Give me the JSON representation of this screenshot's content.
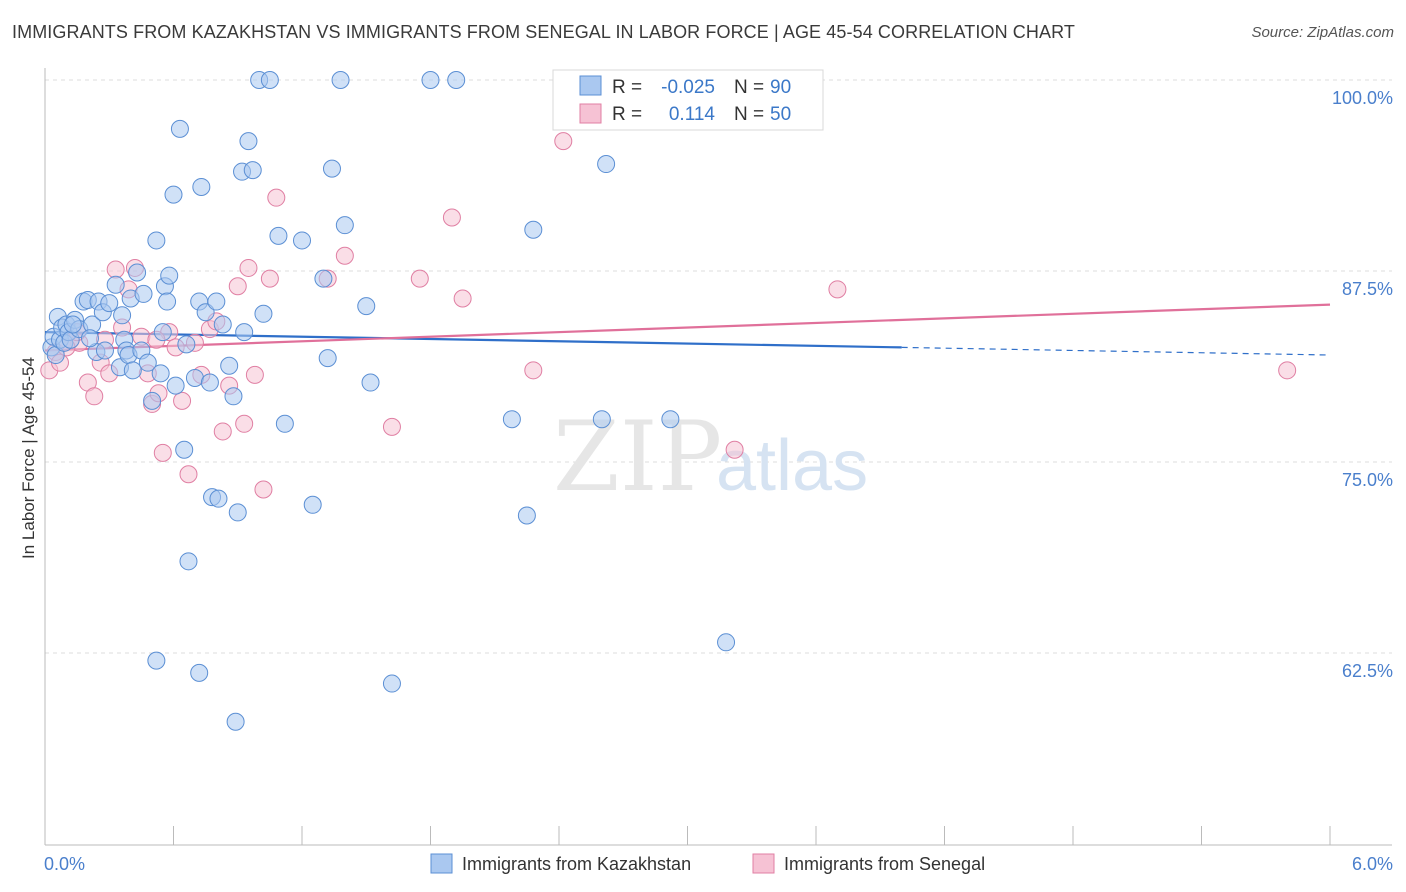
{
  "title": "IMMIGRANTS FROM KAZAKHSTAN VS IMMIGRANTS FROM SENEGAL IN LABOR FORCE | AGE 45-54 CORRELATION CHART",
  "source": "Source: ZipAtlas.com",
  "watermark": {
    "zip": "ZIP",
    "atlas": "atlas"
  },
  "colors": {
    "kazakhstan_fill": "#aac8f0",
    "kazakhstan_stroke": "#5b8fd4",
    "kazakhstan_line": "#2f6fc9",
    "senegal_fill": "#f6c2d4",
    "senegal_stroke": "#e07fa3",
    "senegal_line": "#e0709a",
    "axis_label": "#4a7fcc",
    "grid": "#dddddd"
  },
  "legend_top": {
    "rows": [
      {
        "r_label": "R =",
        "r_value": "-0.025",
        "n_label": "N =",
        "n_value": "90"
      },
      {
        "r_label": "R =",
        "r_value": "0.114",
        "n_label": "N =",
        "n_value": "50"
      }
    ]
  },
  "legend_bottom": {
    "items": [
      {
        "label": "Immigrants from Kazakhstan"
      },
      {
        "label": "Immigrants from Senegal"
      }
    ]
  },
  "chart_data": {
    "type": "scatter",
    "title": "IMMIGRANTS FROM KAZAKHSTAN VS IMMIGRANTS FROM SENEGAL IN LABOR FORCE | AGE 45-54 CORRELATION CHART",
    "xlabel": "",
    "ylabel": "In Labor Force | Age 45-54",
    "xlim": [
      0,
      6
    ],
    "ylim": [
      50,
      101.5
    ],
    "x_tick_labels": [
      {
        "value": 0,
        "label": "0.0%"
      },
      {
        "value": 6,
        "label": "6.0%"
      }
    ],
    "y_tick_labels": [
      {
        "value": 100,
        "label": "100.0%"
      },
      {
        "value": 87.5,
        "label": "87.5%"
      },
      {
        "value": 75,
        "label": "75.0%"
      },
      {
        "value": 62.5,
        "label": "62.5%"
      }
    ],
    "series": [
      {
        "name": "Immigrants from Kazakhstan",
        "r": -0.025,
        "n": 90,
        "trend": {
          "x0": 0,
          "y0": 83.5,
          "x1": 4.0,
          "y1": 82.5,
          "dash_x1": 6.0,
          "dash_y1": 82.0
        },
        "points": [
          [
            0.03,
            82.5
          ],
          [
            0.04,
            83.2
          ],
          [
            0.05,
            82.0
          ],
          [
            0.06,
            84.5
          ],
          [
            0.07,
            83.0
          ],
          [
            0.08,
            83.8
          ],
          [
            0.09,
            82.8
          ],
          [
            0.1,
            84.0
          ],
          [
            0.11,
            83.5
          ],
          [
            0.12,
            83.0
          ],
          [
            0.14,
            84.3
          ],
          [
            0.16,
            83.7
          ],
          [
            0.18,
            85.5
          ],
          [
            0.2,
            85.6
          ],
          [
            0.22,
            84.0
          ],
          [
            0.24,
            82.2
          ],
          [
            0.25,
            85.5
          ],
          [
            0.27,
            84.8
          ],
          [
            0.28,
            82.3
          ],
          [
            0.3,
            85.4
          ],
          [
            0.33,
            86.6
          ],
          [
            0.35,
            81.2
          ],
          [
            0.37,
            83.0
          ],
          [
            0.38,
            82.3
          ],
          [
            0.39,
            82.0
          ],
          [
            0.4,
            85.7
          ],
          [
            0.41,
            81.0
          ],
          [
            0.43,
            87.4
          ],
          [
            0.45,
            82.3
          ],
          [
            0.46,
            86.0
          ],
          [
            0.48,
            81.5
          ],
          [
            0.5,
            79.0
          ],
          [
            0.52,
            89.5
          ],
          [
            0.54,
            80.8
          ],
          [
            0.56,
            86.5
          ],
          [
            0.57,
            85.5
          ],
          [
            0.58,
            87.2
          ],
          [
            0.6,
            92.5
          ],
          [
            0.61,
            80.0
          ],
          [
            0.63,
            96.8
          ],
          [
            0.65,
            75.8
          ],
          [
            0.67,
            68.5
          ],
          [
            0.7,
            80.5
          ],
          [
            0.72,
            85.5
          ],
          [
            0.73,
            93.0
          ],
          [
            0.75,
            84.8
          ],
          [
            0.77,
            80.2
          ],
          [
            0.78,
            72.7
          ],
          [
            0.8,
            85.5
          ],
          [
            0.81,
            72.6
          ],
          [
            0.83,
            84.0
          ],
          [
            0.86,
            81.3
          ],
          [
            0.88,
            79.3
          ],
          [
            0.9,
            71.7
          ],
          [
            0.92,
            94.0
          ],
          [
            0.93,
            83.5
          ],
          [
            0.95,
            96.0
          ],
          [
            0.97,
            94.1
          ],
          [
            1.0,
            100.0
          ],
          [
            1.02,
            84.7
          ],
          [
            1.05,
            100.0
          ],
          [
            1.09,
            89.8
          ],
          [
            1.12,
            77.5
          ],
          [
            1.2,
            89.5
          ],
          [
            1.25,
            72.2
          ],
          [
            1.3,
            87.0
          ],
          [
            1.32,
            81.8
          ],
          [
            1.34,
            94.2
          ],
          [
            1.38,
            100.0
          ],
          [
            1.4,
            90.5
          ],
          [
            1.5,
            85.2
          ],
          [
            1.52,
            80.2
          ],
          [
            1.62,
            60.5
          ],
          [
            1.8,
            100.0
          ],
          [
            1.92,
            100.0
          ],
          [
            2.18,
            77.8
          ],
          [
            2.25,
            71.5
          ],
          [
            2.28,
            90.2
          ],
          [
            2.6,
            77.8
          ],
          [
            2.62,
            94.5
          ],
          [
            2.92,
            77.8
          ],
          [
            3.18,
            63.2
          ],
          [
            0.72,
            61.2
          ],
          [
            0.89,
            58.0
          ],
          [
            0.52,
            62.0
          ],
          [
            0.13,
            84.0
          ],
          [
            0.55,
            83.5
          ],
          [
            0.66,
            82.7
          ],
          [
            0.21,
            83.1
          ],
          [
            0.36,
            84.6
          ]
        ]
      },
      {
        "name": "Immigrants from Senegal",
        "r": 0.114,
        "n": 50,
        "trend": {
          "x0": 0,
          "y0": 82.3,
          "x1": 6.0,
          "y1": 85.3
        },
        "points": [
          [
            0.02,
            81.0
          ],
          [
            0.05,
            82.2
          ],
          [
            0.07,
            81.5
          ],
          [
            0.12,
            83.0
          ],
          [
            0.16,
            82.8
          ],
          [
            0.2,
            80.2
          ],
          [
            0.23,
            79.3
          ],
          [
            0.26,
            81.5
          ],
          [
            0.28,
            83.0
          ],
          [
            0.3,
            80.8
          ],
          [
            0.33,
            87.6
          ],
          [
            0.36,
            83.8
          ],
          [
            0.39,
            86.3
          ],
          [
            0.42,
            87.7
          ],
          [
            0.45,
            83.2
          ],
          [
            0.48,
            80.8
          ],
          [
            0.5,
            78.8
          ],
          [
            0.53,
            79.5
          ],
          [
            0.55,
            75.6
          ],
          [
            0.58,
            83.5
          ],
          [
            0.61,
            82.5
          ],
          [
            0.64,
            79.0
          ],
          [
            0.67,
            74.2
          ],
          [
            0.7,
            82.8
          ],
          [
            0.73,
            80.7
          ],
          [
            0.77,
            83.7
          ],
          [
            0.8,
            84.2
          ],
          [
            0.83,
            77.0
          ],
          [
            0.86,
            80.0
          ],
          [
            0.9,
            86.5
          ],
          [
            0.93,
            77.5
          ],
          [
            0.95,
            87.7
          ],
          [
            0.98,
            80.7
          ],
          [
            1.02,
            73.2
          ],
          [
            1.05,
            87.0
          ],
          [
            1.08,
            92.3
          ],
          [
            1.32,
            87.0
          ],
          [
            1.4,
            88.5
          ],
          [
            1.62,
            77.3
          ],
          [
            1.75,
            87.0
          ],
          [
            1.9,
            91.0
          ],
          [
            1.95,
            85.7
          ],
          [
            2.28,
            81.0
          ],
          [
            2.42,
            96.0
          ],
          [
            3.22,
            75.8
          ],
          [
            3.7,
            86.3
          ],
          [
            5.8,
            81.0
          ],
          [
            0.1,
            82.5
          ],
          [
            0.52,
            83.0
          ],
          [
            0.15,
            83.5
          ]
        ]
      }
    ]
  }
}
